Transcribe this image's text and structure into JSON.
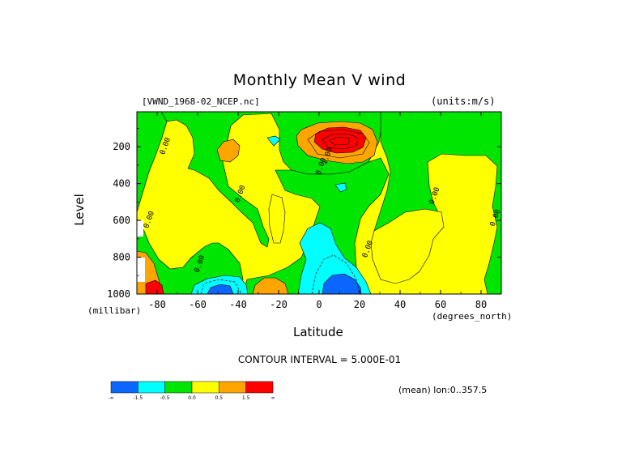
{
  "header": {
    "title": "Monthly Mean V wind",
    "dataset": "[VWND_1968-02_NCEP.nc]",
    "units": "(units:m/s)"
  },
  "footer": {
    "contour_interval": "CONTOUR INTERVAL = 5.000E-01",
    "mean_lon": "(mean) lon:0..357.5"
  },
  "chart_data": {
    "type": "heatmap",
    "title": "Monthly Mean V wind",
    "xlabel": "Latitude",
    "xunit": "(degrees_north)",
    "ylabel": "Level",
    "yunit": "(millibar)",
    "xlim": [
      -90,
      90
    ],
    "ylim": [
      1000,
      10
    ],
    "x_ticks": [
      -80,
      -60,
      -40,
      -20,
      0,
      20,
      40,
      60,
      80
    ],
    "y_ticks": [
      200,
      400,
      600,
      800,
      1000
    ],
    "contour_interval": 0.5,
    "contour_labels": [
      {
        "x": -75,
        "y": 200,
        "text": "0.00"
      },
      {
        "x": -83,
        "y": 600,
        "text": "0.00"
      },
      {
        "x": -58,
        "y": 840,
        "text": "0.00"
      },
      {
        "x": -38,
        "y": 460,
        "text": "0.00"
      },
      {
        "x": 2,
        "y": 310,
        "text": "0.00"
      },
      {
        "x": 25,
        "y": 760,
        "text": "0.00"
      },
      {
        "x": 58,
        "y": 470,
        "text": "0.00"
      },
      {
        "x": 88,
        "y": 590,
        "text": "0.00"
      },
      {
        "x": 5,
        "y": 255,
        "text": "1.00"
      }
    ],
    "colorbar": {
      "labels": [
        "-∞",
        "-1.5",
        "-0.5",
        "0.0",
        "0.5",
        "1.5",
        "∞"
      ],
      "bins": [
        {
          "label": "< -1.5",
          "color": "#0b66ff"
        },
        {
          "label": "-1.5 .. -0.5",
          "color": "#00ffff"
        },
        {
          "label": "-0.5 .. 0.0",
          "color": "#00e600"
        },
        {
          "label": "0.0 .. 0.5",
          "color": "#ffff00"
        },
        {
          "label": "0.5 .. 1.5",
          "color": "#ffa500"
        },
        {
          "label": "> 1.5",
          "color": "#ff0000"
        }
      ]
    },
    "regions": [
      {
        "level_class": "positive",
        "color": "#ffff00",
        "desc": "background 0 to 0.5"
      },
      {
        "lat": [
          -90,
          -75
        ],
        "lev": [
          80,
          500
        ],
        "color": "#00e600"
      },
      {
        "lat": [
          -70,
          -45
        ],
        "lev": [
          120,
          780
        ],
        "color": "#00e600"
      },
      {
        "lat": [
          -45,
          20
        ],
        "lev": [
          80,
          1000
        ],
        "color": "#00e600"
      },
      {
        "lat": [
          20,
          60
        ],
        "lev": [
          80,
          420
        ],
        "color": "#00e600"
      },
      {
        "lat": [
          25,
          90
        ],
        "lev": [
          120,
          1000
        ],
        "color": "#00e600"
      },
      {
        "lat": [
          -20,
          20
        ],
        "lev": [
          120,
          330
        ],
        "color": "#ffa500"
      },
      {
        "lat": [
          -15,
          18
        ],
        "lev": [
          140,
          300
        ],
        "color": "#ff0000"
      },
      {
        "lat": [
          -5,
          15
        ],
        "lev": [
          600,
          1000
        ],
        "color": "#00ffff"
      },
      {
        "lat": [
          0,
          15
        ],
        "lev": [
          880,
          1000
        ],
        "color": "#0b66ff"
      },
      {
        "lat": [
          -60,
          -40
        ],
        "lev": [
          860,
          1000
        ],
        "color": "#00ffff"
      },
      {
        "lat": [
          -58,
          -45
        ],
        "lev": [
          930,
          1000
        ],
        "color": "#0b66ff"
      },
      {
        "lat": [
          -35,
          -20
        ],
        "lev": [
          890,
          1000
        ],
        "color": "#ffa500"
      },
      {
        "lat": [
          -90,
          -80
        ],
        "lev": [
          780,
          1000
        ],
        "color": "#ffa500"
      },
      {
        "lat": [
          -47,
          -38
        ],
        "lev": [
          150,
          270
        ],
        "color": "#ffa500"
      }
    ]
  }
}
